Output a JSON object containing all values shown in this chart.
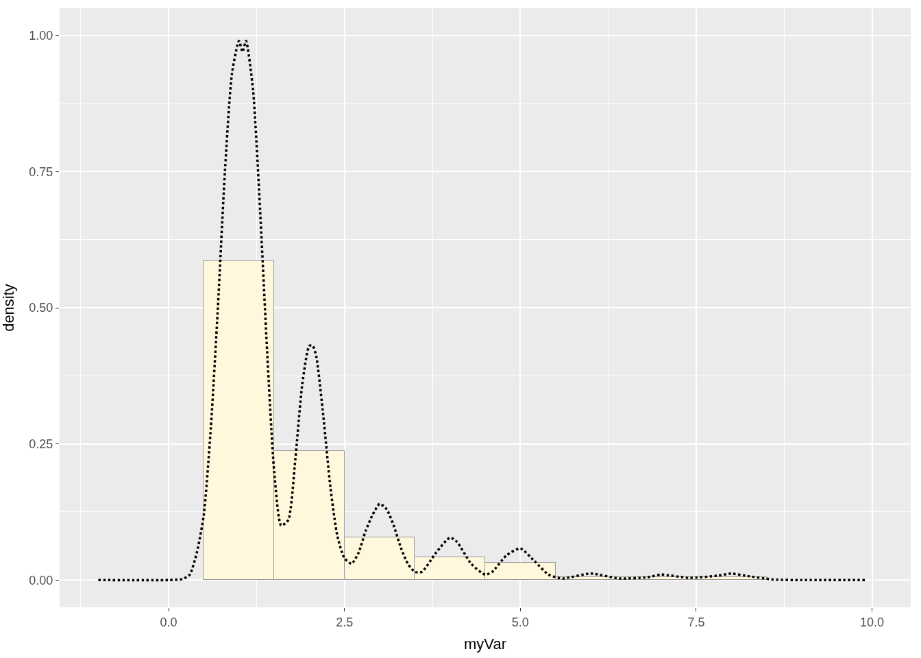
{
  "chart_data": {
    "type": "histogram",
    "xlabel": "myVar",
    "ylabel": "density",
    "bins": [
      0.5,
      1.5,
      2.5,
      3.5,
      4.5,
      5.5,
      6.5,
      7.5,
      8.5
    ],
    "values": [
      0.585,
      0.237,
      0.078,
      0.042,
      0.032,
      0.006,
      0.006,
      0.006
    ],
    "color": "#fff8dc",
    "series": [
      {
        "type": "line",
        "color": "#000000",
        "line_style": "dotted",
        "x": [
          -1,
          0,
          0.2,
          0.3,
          0.4,
          0.5,
          0.6,
          0.7,
          0.8,
          0.9,
          1.0,
          1.05,
          1.1,
          1.2,
          1.3,
          1.4,
          1.5,
          1.6,
          1.7,
          1.8,
          1.9,
          2.0,
          2.05,
          2.1,
          2.2,
          2.3,
          2.4,
          2.5,
          2.6,
          2.7,
          2.8,
          2.9,
          3.0,
          3.1,
          3.2,
          3.3,
          3.4,
          3.5,
          3.6,
          3.8,
          4.0,
          4.1,
          4.3,
          4.5,
          4.6,
          4.8,
          5.0,
          5.2,
          5.4,
          5.6,
          6.0,
          6.4,
          6.8,
          7.0,
          7.4,
          7.8,
          8.0,
          8.2,
          8.6,
          9.0,
          9.9
        ],
        "values": [
          0,
          0,
          0.002,
          0.01,
          0.05,
          0.12,
          0.28,
          0.5,
          0.75,
          0.93,
          0.99,
          0.97,
          0.99,
          0.9,
          0.68,
          0.42,
          0.2,
          0.1,
          0.11,
          0.22,
          0.36,
          0.43,
          0.43,
          0.41,
          0.3,
          0.17,
          0.08,
          0.04,
          0.03,
          0.05,
          0.09,
          0.12,
          0.14,
          0.13,
          0.1,
          0.06,
          0.03,
          0.015,
          0.015,
          0.05,
          0.078,
          0.07,
          0.03,
          0.01,
          0.015,
          0.045,
          0.058,
          0.035,
          0.01,
          0.003,
          0.012,
          0.003,
          0.005,
          0.01,
          0.004,
          0.008,
          0.012,
          0.008,
          0.001,
          0,
          0
        ]
      }
    ],
    "xlim": [
      -1.55,
      10.55
    ],
    "ylim": [
      -0.05,
      1.05
    ],
    "xticks": [
      {
        "value": 0,
        "label": "0.0"
      },
      {
        "value": 2.5,
        "label": "2.5"
      },
      {
        "value": 5,
        "label": "5.0"
      },
      {
        "value": 7.5,
        "label": "7.5"
      },
      {
        "value": 10,
        "label": "10.0"
      }
    ],
    "yticks": [
      {
        "value": 0,
        "label": "0.00"
      },
      {
        "value": 0.25,
        "label": "0.25"
      },
      {
        "value": 0.5,
        "label": "0.50"
      },
      {
        "value": 0.75,
        "label": "0.75"
      },
      {
        "value": 1,
        "label": "1.00"
      }
    ],
    "grid": true
  }
}
